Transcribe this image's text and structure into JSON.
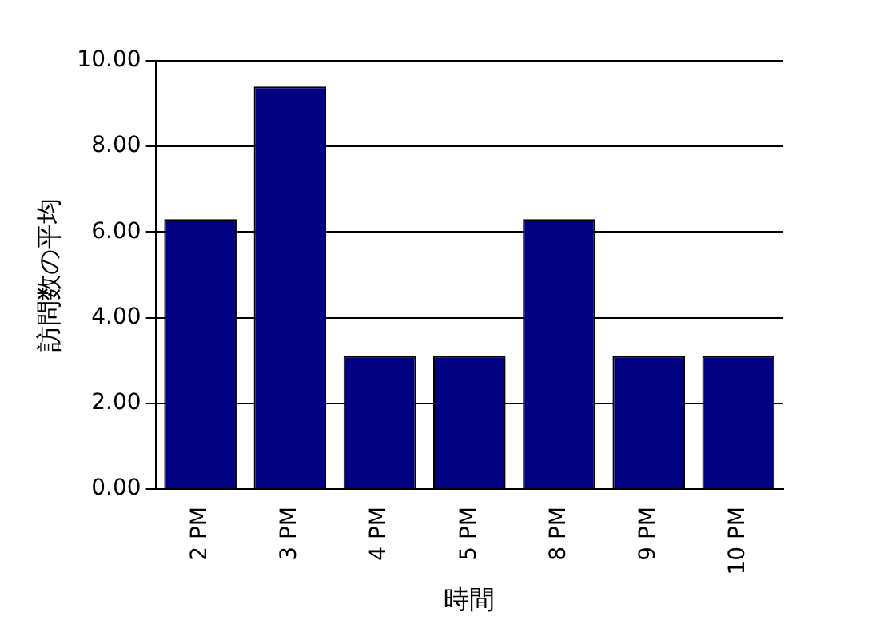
{
  "chart_data": {
    "type": "bar",
    "xlabel": "時間",
    "ylabel": "訪問数の平均",
    "categories": [
      "2 PM",
      "3 PM",
      "4 PM",
      "5 PM",
      "8 PM",
      "9 PM",
      "10 PM"
    ],
    "values": [
      6.3,
      9.4,
      3.1,
      3.1,
      6.3,
      3.1,
      3.1
    ],
    "color": "#000080",
    "ylim": [
      0,
      10
    ],
    "yticks": [
      {
        "value": 0,
        "label": "0.00"
      },
      {
        "value": 2,
        "label": "2.00"
      },
      {
        "value": 4,
        "label": "4.00"
      },
      {
        "value": 6,
        "label": "6.00"
      },
      {
        "value": 8,
        "label": "8.00"
      },
      {
        "value": 10,
        "label": "10.00"
      }
    ],
    "grid": "y",
    "legend": false
  }
}
